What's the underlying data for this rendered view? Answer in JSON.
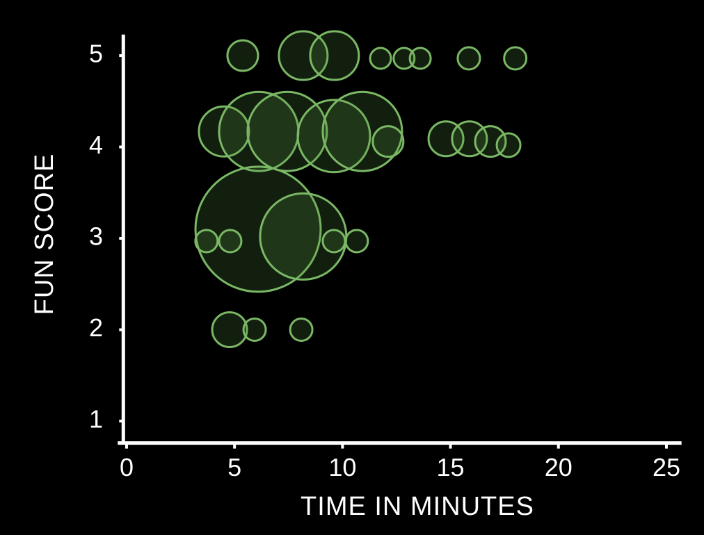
{
  "chart_data": {
    "type": "bubble",
    "xlabel": "TIME IN MINUTES",
    "ylabel": "FUN SCORE",
    "x": [
      5.38,
      8.18,
      9.63,
      11.76,
      12.85,
      13.6,
      15.85,
      18.0,
      4.51,
      6.12,
      7.44,
      9.6,
      10.92,
      12.11,
      14.79,
      15.88,
      16.85,
      17.69,
      6.09,
      8.18,
      3.7,
      4.8,
      9.6,
      10.66,
      4.77,
      5.93,
      8.09
    ],
    "values": [
      5,
      5,
      5,
      4.97,
      4.97,
      4.97,
      4.97,
      4.97,
      4.17,
      4.17,
      4.17,
      4.12,
      4.17,
      4.06,
      4.09,
      4.09,
      4.06,
      4.02,
      3.1,
      3.02,
      2.97,
      2.97,
      2.97,
      2.97,
      2,
      2,
      2
    ],
    "sizes": [
      22,
      35,
      35,
      15,
      15,
      15,
      16,
      16,
      36,
      57,
      57,
      52,
      57,
      22,
      25,
      25,
      22,
      17,
      90,
      62,
      16,
      16,
      16,
      16,
      25,
      16,
      16
    ],
    "color": "#7ab865",
    "xlim": [
      -0.15,
      25.7
    ],
    "ylim": [
      0.76,
      5.23
    ],
    "xticks": [
      0,
      5,
      10,
      15,
      20,
      25
    ],
    "yticks": [
      1,
      2,
      3,
      4,
      5
    ]
  }
}
